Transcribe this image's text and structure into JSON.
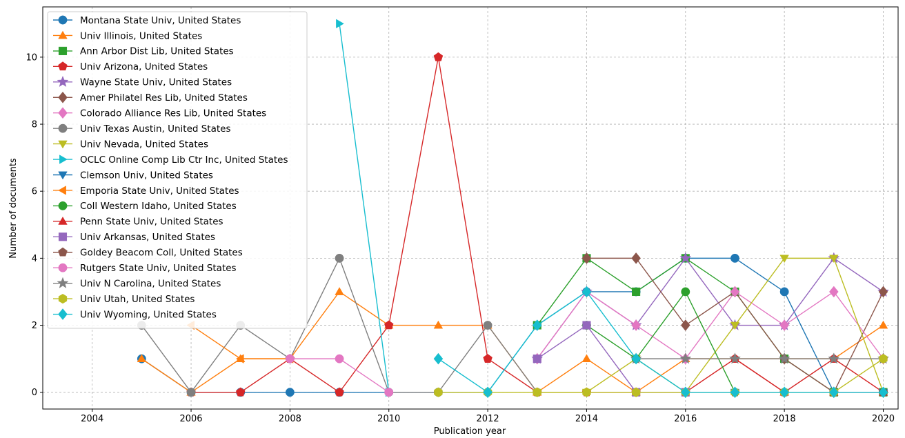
{
  "chart_data": {
    "type": "line",
    "xlabel": "Publication year",
    "ylabel": "Number of documents",
    "xlim": [
      2003,
      2020.3
    ],
    "ylim": [
      -0.5,
      11.5
    ],
    "xticks": [
      "2004",
      "2006",
      "2008",
      "2010",
      "2012",
      "2014",
      "2016",
      "2018",
      "2020"
    ],
    "yticks": [
      "0",
      "2",
      "4",
      "6",
      "8",
      "10"
    ],
    "grid": true,
    "legend_position": "upper-left",
    "series": [
      {
        "name": "Montana State Univ, United States",
        "color": "#1f77b4",
        "marker": "circle",
        "x": [
          2005,
          2006,
          2007,
          2008,
          2009,
          2010,
          2011,
          2012,
          2013,
          2014,
          2015,
          2016,
          2017,
          2018,
          2019,
          2020
        ],
        "y": [
          1,
          0,
          0,
          0,
          0,
          0,
          0,
          0,
          2,
          3,
          3,
          4,
          4,
          3,
          0,
          0
        ]
      },
      {
        "name": "Univ Illinois, United States",
        "color": "#ff7f0e",
        "marker": "triangle-up",
        "x": [
          2005,
          2006,
          2007,
          2008,
          2009,
          2010,
          2011,
          2012,
          2013,
          2014,
          2015,
          2016,
          2017,
          2018,
          2019,
          2020
        ],
        "y": [
          1,
          0,
          1,
          1,
          3,
          2,
          2,
          2,
          0,
          1,
          0,
          1,
          1,
          1,
          1,
          2
        ]
      },
      {
        "name": "Ann Arbor Dist Lib, United States",
        "color": "#2ca02c",
        "marker": "square",
        "x": [
          2013,
          2014,
          2015,
          2016,
          2017,
          2018,
          2019,
          2020
        ],
        "y": [
          2,
          4,
          3,
          4,
          3,
          1,
          0,
          0
        ]
      },
      {
        "name": "Univ Arizona, United States",
        "color": "#d62728",
        "marker": "pentagon",
        "x": [
          2006,
          2007,
          2008,
          2009,
          2010,
          2011,
          2012,
          2013,
          2014,
          2015,
          2016,
          2017,
          2018,
          2019,
          2020
        ],
        "y": [
          0,
          0,
          1,
          0,
          2,
          10,
          1,
          0,
          0,
          0,
          0,
          1,
          0,
          1,
          0
        ]
      },
      {
        "name": "Wayne State Univ, United States",
        "color": "#9467bd",
        "marker": "star",
        "x": [
          2013,
          2014,
          2015,
          2016,
          2017,
          2018,
          2019,
          2020
        ],
        "y": [
          1,
          3,
          2,
          4,
          2,
          2,
          4,
          3
        ]
      },
      {
        "name": "Amer Philatel Res Lib, United States",
        "color": "#8c564b",
        "marker": "diamond",
        "x": [
          2014,
          2015,
          2016,
          2017,
          2018,
          2019,
          2020
        ],
        "y": [
          4,
          4,
          2,
          3,
          1,
          0,
          3
        ]
      },
      {
        "name": "Colorado Alliance Res Lib, United States",
        "color": "#e377c2",
        "marker": "diamond",
        "x": [
          2013,
          2014,
          2015,
          2016,
          2017,
          2018,
          2019,
          2020
        ],
        "y": [
          1,
          3,
          2,
          1,
          3,
          2,
          3,
          1
        ]
      },
      {
        "name": "Univ Texas Austin, United States",
        "color": "#7f7f7f",
        "marker": "circle",
        "x": [
          2005,
          2006,
          2007,
          2008,
          2009,
          2010,
          2011,
          2012,
          2013
        ],
        "y": [
          2,
          0,
          2,
          1,
          4,
          0,
          0,
          2,
          0
        ]
      },
      {
        "name": "Univ Nevada, United States",
        "color": "#bcbd22",
        "marker": "triangle-down",
        "x": [
          2013,
          2014,
          2015,
          2016,
          2017,
          2018,
          2019,
          2020
        ],
        "y": [
          0,
          0,
          1,
          0,
          2,
          4,
          4,
          0
        ]
      },
      {
        "name": "OCLC Online Comp Lib Ctr Inc, United States",
        "color": "#17becf",
        "marker": "triangle-right",
        "x": [
          2009,
          2010
        ],
        "y": [
          11,
          0
        ]
      },
      {
        "name": "Clemson Univ, United States",
        "color": "#1f77b4",
        "marker": "triangle-down",
        "x": [
          2016,
          2017,
          2018,
          2019,
          2020
        ],
        "y": [
          0,
          0,
          0,
          0,
          0
        ]
      },
      {
        "name": "Emporia State Univ, United States",
        "color": "#ff7f0e",
        "marker": "triangle-left",
        "x": [
          2006,
          2007,
          2008
        ],
        "y": [
          2,
          1,
          1
        ]
      },
      {
        "name": "Coll Western Idaho, United States",
        "color": "#2ca02c",
        "marker": "circle",
        "x": [
          2014,
          2015,
          2016,
          2017,
          2018,
          2019,
          2020
        ],
        "y": [
          2,
          1,
          3,
          0,
          0,
          0,
          0
        ]
      },
      {
        "name": "Penn State Univ, United States",
        "color": "#d62728",
        "marker": "triangle-up",
        "x": [
          2017,
          2018,
          2019,
          2020
        ],
        "y": [
          1,
          0,
          0,
          0
        ]
      },
      {
        "name": "Univ Arkansas, United States",
        "color": "#9467bd",
        "marker": "square",
        "x": [
          2013,
          2014,
          2015,
          2016
        ],
        "y": [
          1,
          2,
          0,
          0
        ]
      },
      {
        "name": "Goldey Beacom Coll, United States",
        "color": "#8c564b",
        "marker": "pentagon",
        "x": [
          2016,
          2017,
          2018,
          2019,
          2020
        ],
        "y": [
          0,
          0,
          0,
          0,
          0
        ]
      },
      {
        "name": "Rutgers State Univ, United States",
        "color": "#e377c2",
        "marker": "circle",
        "x": [
          2008,
          2009,
          2010
        ],
        "y": [
          1,
          1,
          0
        ]
      },
      {
        "name": "Univ N Carolina, United States",
        "color": "#7f7f7f",
        "marker": "star",
        "x": [
          2015,
          2016,
          2017,
          2018,
          2019,
          2020
        ],
        "y": [
          1,
          1,
          1,
          1,
          1,
          1
        ]
      },
      {
        "name": "Univ Utah, United States",
        "color": "#bcbd22",
        "marker": "hexagon",
        "x": [
          2011,
          2012,
          2013,
          2014,
          2015,
          2016,
          2017,
          2018,
          2019,
          2020
        ],
        "y": [
          0,
          0,
          0,
          0,
          0,
          0,
          0,
          0,
          0,
          1
        ]
      },
      {
        "name": "Univ Wyoming, United States",
        "color": "#17becf",
        "marker": "diamond",
        "x": [
          2011,
          2012,
          2013,
          2014,
          2015,
          2016,
          2017,
          2018,
          2019,
          2020
        ],
        "y": [
          1,
          0,
          2,
          3,
          1,
          0,
          0,
          0,
          0,
          0
        ]
      }
    ]
  }
}
